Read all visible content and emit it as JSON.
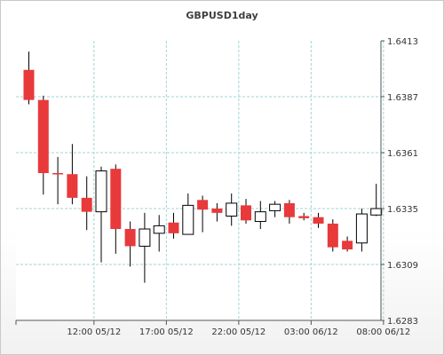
{
  "chart_data": {
    "type": "candlestick",
    "title": "GBPUSD1day",
    "grid": true,
    "y_axis_side": "right",
    "ylim": [
      1.6283,
      1.6413
    ],
    "y_ticks": [
      "1.6413",
      "1.6387",
      "1.6361",
      "1.6335",
      "1.6309",
      "1.6283"
    ],
    "x_ticks": [
      {
        "label": "12:00 05/12",
        "index": 4.5
      },
      {
        "label": "17:00 05/12",
        "index": 9.5
      },
      {
        "label": "22:00 05/12",
        "index": 14.5
      },
      {
        "label": "03:00 06/12",
        "index": 19.5
      },
      {
        "label": "08:00 06/12",
        "index": 24.5
      }
    ],
    "colors": {
      "up": "#ffffff",
      "down": "#e8393b",
      "outline": "#000000",
      "grid": "#9fd6d6"
    },
    "candles": [
      {
        "open": 1.63995,
        "high": 1.6408,
        "low": 1.63835,
        "close": 1.63855
      },
      {
        "open": 1.63855,
        "high": 1.63875,
        "low": 1.63415,
        "close": 1.63515
      },
      {
        "open": 1.63515,
        "high": 1.6359,
        "low": 1.6337,
        "close": 1.6351
      },
      {
        "open": 1.6351,
        "high": 1.6365,
        "low": 1.6337,
        "close": 1.634
      },
      {
        "open": 1.634,
        "high": 1.635,
        "low": 1.6325,
        "close": 1.63335
      },
      {
        "open": 1.63335,
        "high": 1.63545,
        "low": 1.631,
        "close": 1.63525
      },
      {
        "open": 1.63535,
        "high": 1.63555,
        "low": 1.6314,
        "close": 1.63255
      },
      {
        "open": 1.63255,
        "high": 1.6329,
        "low": 1.6308,
        "close": 1.63175
      },
      {
        "open": 1.63175,
        "high": 1.6333,
        "low": 1.63005,
        "close": 1.63255
      },
      {
        "open": 1.63235,
        "high": 1.6332,
        "low": 1.6315,
        "close": 1.6327
      },
      {
        "open": 1.63285,
        "high": 1.6333,
        "low": 1.6321,
        "close": 1.63235
      },
      {
        "open": 1.6323,
        "high": 1.6342,
        "low": 1.6323,
        "close": 1.63365
      },
      {
        "open": 1.6339,
        "high": 1.6341,
        "low": 1.6324,
        "close": 1.63345
      },
      {
        "open": 1.6335,
        "high": 1.63375,
        "low": 1.6329,
        "close": 1.6333
      },
      {
        "open": 1.63315,
        "high": 1.6342,
        "low": 1.6327,
        "close": 1.63375
      },
      {
        "open": 1.63365,
        "high": 1.63395,
        "low": 1.6328,
        "close": 1.63295
      },
      {
        "open": 1.6329,
        "high": 1.63385,
        "low": 1.63255,
        "close": 1.63335
      },
      {
        "open": 1.6334,
        "high": 1.63385,
        "low": 1.6331,
        "close": 1.6337
      },
      {
        "open": 1.63375,
        "high": 1.6339,
        "low": 1.6328,
        "close": 1.6331
      },
      {
        "open": 1.63315,
        "high": 1.6333,
        "low": 1.63295,
        "close": 1.63305
      },
      {
        "open": 1.6331,
        "high": 1.6333,
        "low": 1.6326,
        "close": 1.6328
      },
      {
        "open": 1.6328,
        "high": 1.633,
        "low": 1.6315,
        "close": 1.6317
      },
      {
        "open": 1.632,
        "high": 1.6322,
        "low": 1.6315,
        "close": 1.6316
      },
      {
        "open": 1.6319,
        "high": 1.6335,
        "low": 1.6315,
        "close": 1.63325
      },
      {
        "open": 1.6332,
        "high": 1.63465,
        "low": 1.63315,
        "close": 1.6335
      }
    ]
  }
}
